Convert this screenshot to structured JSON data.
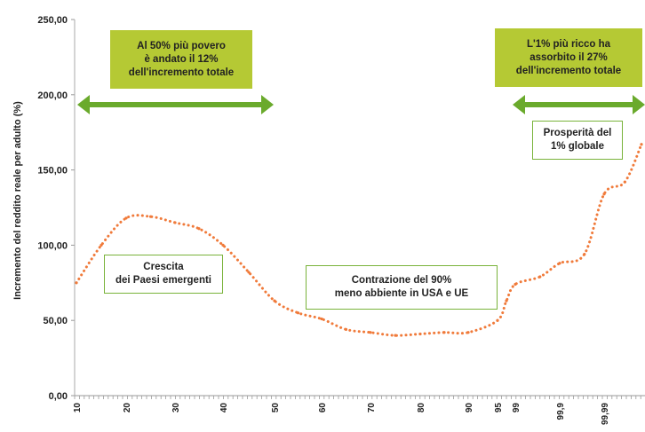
{
  "chart_data": {
    "type": "line",
    "ylabel": "Incremento del reddito reale per adulto (%)",
    "ylim": [
      0,
      250
    ],
    "y_ticks": [
      "0,00",
      "50,00",
      "100,00",
      "150,00",
      "200,00",
      "250,00"
    ],
    "x_tick_labels": [
      "10",
      "20",
      "30",
      "40",
      "50",
      "60",
      "70",
      "80",
      "90",
      "95",
      "99",
      "99,9",
      "99,99"
    ],
    "series_color": "#f07a3a",
    "arrow_color": "#6aaa2c",
    "series": [
      {
        "x": [
          10,
          15,
          20,
          25,
          30,
          35,
          40,
          45,
          50,
          55,
          60,
          65,
          70,
          75,
          80,
          85,
          90,
          95,
          97,
          99,
          99.5,
          99.9,
          99.95,
          99.99,
          99.995,
          99.999
        ],
        "values": [
          75,
          100,
          118,
          119,
          115,
          111,
          100,
          82,
          63,
          55,
          51,
          44,
          42,
          40,
          41,
          42,
          42,
          50,
          63,
          74,
          79,
          88,
          94,
          134,
          142,
          167
        ]
      }
    ]
  },
  "annotations": {
    "poor_share": "Al 50% più povero\nè andato il 12%\ndell'incremento totale",
    "rich_share": "L'1% più ricco ha\nassorbito il 27%\ndell'incremento totale",
    "emerging": "Crescita\ndei Paesi emergenti",
    "middle": "Contrazione del 90%\nmeno abbiente in USA e UE",
    "global_elite": "Prosperità del\n1% globale"
  }
}
